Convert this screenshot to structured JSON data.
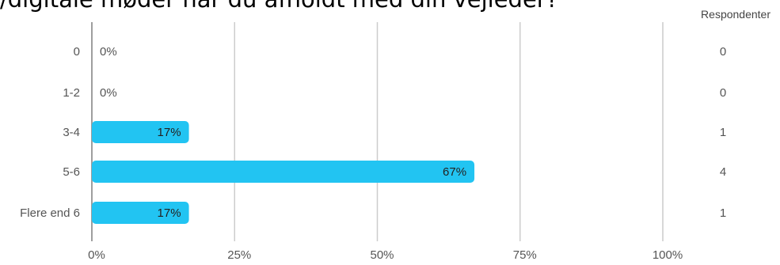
{
  "question_title": "/digitale møder har du afholdt med din vejleder?",
  "respondents_header": "Respondenter",
  "chart_data": {
    "type": "bar",
    "orientation": "horizontal",
    "categories": [
      "0",
      "1-2",
      "3-4",
      "5-6",
      "Flere end 6"
    ],
    "values": [
      0,
      0,
      17,
      67,
      17
    ],
    "value_labels": [
      "0%",
      "0%",
      "17%",
      "67%",
      "17%"
    ],
    "respondents": [
      0,
      0,
      1,
      4,
      1
    ],
    "x_ticks": [
      "0%",
      "25%",
      "50%",
      "75%",
      "100%"
    ],
    "xlim": [
      0,
      100
    ],
    "grid": true,
    "bar_color": "#22c4f2"
  }
}
